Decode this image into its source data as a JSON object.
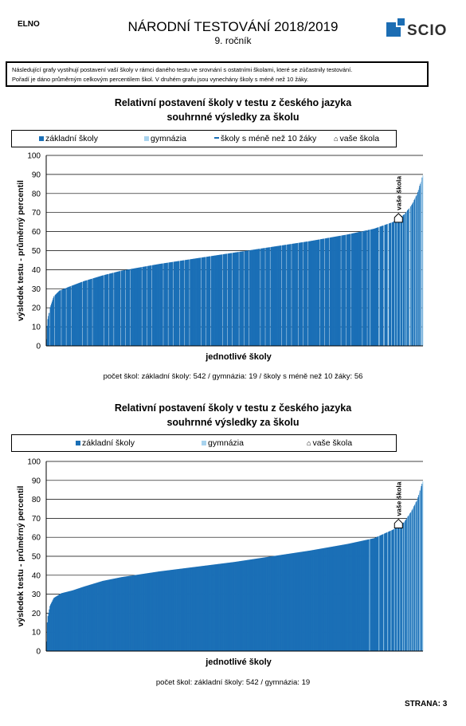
{
  "header": {
    "school_code": "ELNO",
    "title": "NÁRODNÍ TESTOVÁNÍ 2018/2019",
    "subtitle": "9. ročník",
    "logo_text": "SCIO",
    "logo_color": "#1c6db3"
  },
  "info": {
    "line1": "Následující grafy vystihují postavení vaší školy v rámci daného testu ve srovnání s ostatními školami, které se zúčastnily testování.",
    "line2": "Pořadí je dáno průměrným celkovým percentilem škol. V druhém grafu jsou vynechány školy s méně než 10 žáky."
  },
  "footer": {
    "page": "STRANA: 3"
  },
  "colors": {
    "basic": "#1a6fb6",
    "gym": "#a8d3ee",
    "small": "#ffffff",
    "own": "#ffffff"
  },
  "chart_data": [
    {
      "type": "bar",
      "title": "Relativní postavení školy v testu z českého jazyka",
      "subtitle": "souhrnné výsledky za školu",
      "xlabel": "jednotlivé školy",
      "ylabel": "výsledek testu - průměrný percentil",
      "ylim": [
        0,
        100
      ],
      "yticks": [
        0,
        10,
        20,
        30,
        40,
        50,
        60,
        70,
        80,
        90,
        100
      ],
      "grid": true,
      "legend": [
        "základní školy",
        "gymnázia",
        "školy s méně než 10 žáky",
        "vaše škola"
      ],
      "marker_label": "vaše škola",
      "marker_value": 67,
      "series": [
        {
          "name": "základní školy",
          "count": 542
        },
        {
          "name": "gymnázia",
          "count": 19
        },
        {
          "name": "školy s méně než 10 žáky",
          "count": 56
        }
      ],
      "curve": [
        [
          0,
          0
        ],
        [
          0.003,
          13
        ],
        [
          0.01,
          20
        ],
        [
          0.02,
          26
        ],
        [
          0.035,
          29
        ],
        [
          0.06,
          31
        ],
        [
          0.1,
          34
        ],
        [
          0.15,
          37
        ],
        [
          0.2,
          39.5
        ],
        [
          0.3,
          43
        ],
        [
          0.4,
          46
        ],
        [
          0.5,
          49
        ],
        [
          0.6,
          52
        ],
        [
          0.7,
          55
        ],
        [
          0.8,
          58.5
        ],
        [
          0.87,
          61.5
        ],
        [
          0.92,
          65
        ],
        [
          0.95,
          69
        ],
        [
          0.97,
          74
        ],
        [
          0.985,
          80
        ],
        [
          1,
          90
        ]
      ],
      "footnote": "počet škol: základní školy: 542 / gymnázia: 19 / školy s méně než 10 žáky: 56"
    },
    {
      "type": "bar",
      "title": "Relativní postavení školy v testu z českého jazyka",
      "subtitle": "souhrnné výsledky za školu",
      "xlabel": "jednotlivé školy",
      "ylabel": "výsledek testu - průměrný percentil",
      "ylim": [
        0,
        100
      ],
      "yticks": [
        0,
        10,
        20,
        30,
        40,
        50,
        60,
        70,
        80,
        90,
        100
      ],
      "grid": true,
      "legend": [
        "základní školy",
        "gymnázia",
        "vaše škola"
      ],
      "marker_label": "vaše škola",
      "marker_value": 67,
      "series": [
        {
          "name": "základní školy",
          "count": 542
        },
        {
          "name": "gymnázia",
          "count": 19
        }
      ],
      "curve": [
        [
          0,
          0
        ],
        [
          0.003,
          17
        ],
        [
          0.01,
          24
        ],
        [
          0.02,
          28
        ],
        [
          0.04,
          30.5
        ],
        [
          0.07,
          32
        ],
        [
          0.1,
          34
        ],
        [
          0.15,
          37
        ],
        [
          0.2,
          39
        ],
        [
          0.3,
          42
        ],
        [
          0.4,
          44.5
        ],
        [
          0.5,
          47
        ],
        [
          0.6,
          50
        ],
        [
          0.7,
          53
        ],
        [
          0.8,
          56.5
        ],
        [
          0.87,
          59.5
        ],
        [
          0.92,
          64
        ],
        [
          0.95,
          68
        ],
        [
          0.97,
          74
        ],
        [
          0.985,
          80
        ],
        [
          1,
          90
        ]
      ],
      "footnote": "počet škol: základní školy: 542 / gymnázia: 19"
    }
  ]
}
